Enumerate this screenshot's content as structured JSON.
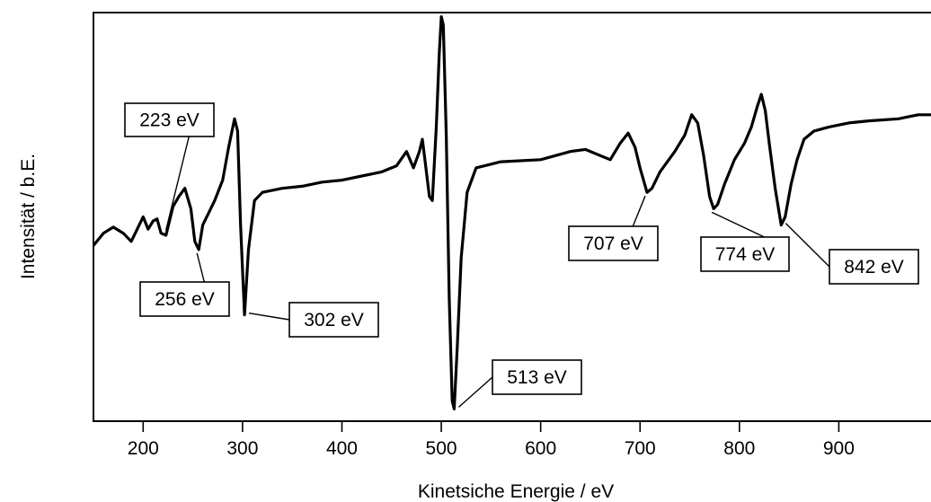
{
  "chart_data": {
    "type": "line",
    "xlabel": "Kinetsiche Energie / eV",
    "ylabel": "Intensität / b.E.",
    "xlim": [
      150,
      1000
    ],
    "ylim": [
      0,
      100
    ],
    "x_ticks": [
      200,
      300,
      400,
      500,
      600,
      700,
      800,
      900
    ],
    "y_ticks_shown": false,
    "grid": false,
    "series": [
      {
        "values_xy": [
          [
            150,
            43
          ],
          [
            160,
            46
          ],
          [
            170,
            47.5
          ],
          [
            180,
            46
          ],
          [
            188,
            44
          ],
          [
            193,
            46.5
          ],
          [
            200,
            50
          ],
          [
            205,
            47
          ],
          [
            210,
            49
          ],
          [
            214,
            49.5
          ],
          [
            218,
            46
          ],
          [
            223,
            45.5
          ],
          [
            230,
            52.5
          ],
          [
            236,
            55
          ],
          [
            242,
            57
          ],
          [
            248,
            52
          ],
          [
            252,
            44
          ],
          [
            256,
            42
          ],
          [
            260,
            48
          ],
          [
            266,
            51
          ],
          [
            272,
            54
          ],
          [
            280,
            59
          ],
          [
            286,
            67
          ],
          [
            292,
            74
          ],
          [
            295,
            71
          ],
          [
            298,
            48
          ],
          [
            302,
            26
          ],
          [
            306,
            42
          ],
          [
            312,
            54
          ],
          [
            320,
            56
          ],
          [
            340,
            57
          ],
          [
            360,
            57.5
          ],
          [
            380,
            58.5
          ],
          [
            400,
            59
          ],
          [
            420,
            60
          ],
          [
            440,
            61
          ],
          [
            455,
            62.5
          ],
          [
            465,
            66
          ],
          [
            472,
            62
          ],
          [
            478,
            66
          ],
          [
            481,
            69
          ],
          [
            484,
            63
          ],
          [
            488,
            55
          ],
          [
            491,
            54
          ],
          [
            495,
            72
          ],
          [
            498,
            90
          ],
          [
            500,
            99
          ],
          [
            502,
            97
          ],
          [
            505,
            70
          ],
          [
            508,
            30
          ],
          [
            511,
            5
          ],
          [
            513,
            3
          ],
          [
            516,
            18
          ],
          [
            520,
            40
          ],
          [
            526,
            56
          ],
          [
            535,
            62
          ],
          [
            560,
            63.5
          ],
          [
            600,
            64
          ],
          [
            630,
            66
          ],
          [
            645,
            66.5
          ],
          [
            660,
            65
          ],
          [
            670,
            64
          ],
          [
            680,
            68
          ],
          [
            688,
            70.5
          ],
          [
            695,
            67
          ],
          [
            700,
            62
          ],
          [
            707,
            56
          ],
          [
            712,
            57
          ],
          [
            720,
            61
          ],
          [
            735,
            66
          ],
          [
            745,
            70
          ],
          [
            752,
            75
          ],
          [
            758,
            73
          ],
          [
            764,
            65
          ],
          [
            770,
            55
          ],
          [
            774,
            52
          ],
          [
            778,
            53
          ],
          [
            785,
            58
          ],
          [
            795,
            64
          ],
          [
            805,
            68
          ],
          [
            812,
            72
          ],
          [
            818,
            77
          ],
          [
            822,
            80
          ],
          [
            826,
            76
          ],
          [
            830,
            68
          ],
          [
            836,
            57
          ],
          [
            842,
            48
          ],
          [
            846,
            50
          ],
          [
            852,
            58
          ],
          [
            858,
            64
          ],
          [
            865,
            69
          ],
          [
            875,
            71
          ],
          [
            890,
            72
          ],
          [
            910,
            73
          ],
          [
            930,
            73.5
          ],
          [
            960,
            74
          ],
          [
            980,
            75
          ],
          [
            1000,
            75
          ]
        ]
      }
    ],
    "annotations": [
      {
        "text": "223 eV",
        "x": 223
      },
      {
        "text": "256 eV",
        "x": 256
      },
      {
        "text": "302 eV",
        "x": 302
      },
      {
        "text": "513 eV",
        "x": 513
      },
      {
        "text": "707 eV",
        "x": 707
      },
      {
        "text": "774 eV",
        "x": 774
      },
      {
        "text": "842 eV",
        "x": 842
      }
    ]
  }
}
